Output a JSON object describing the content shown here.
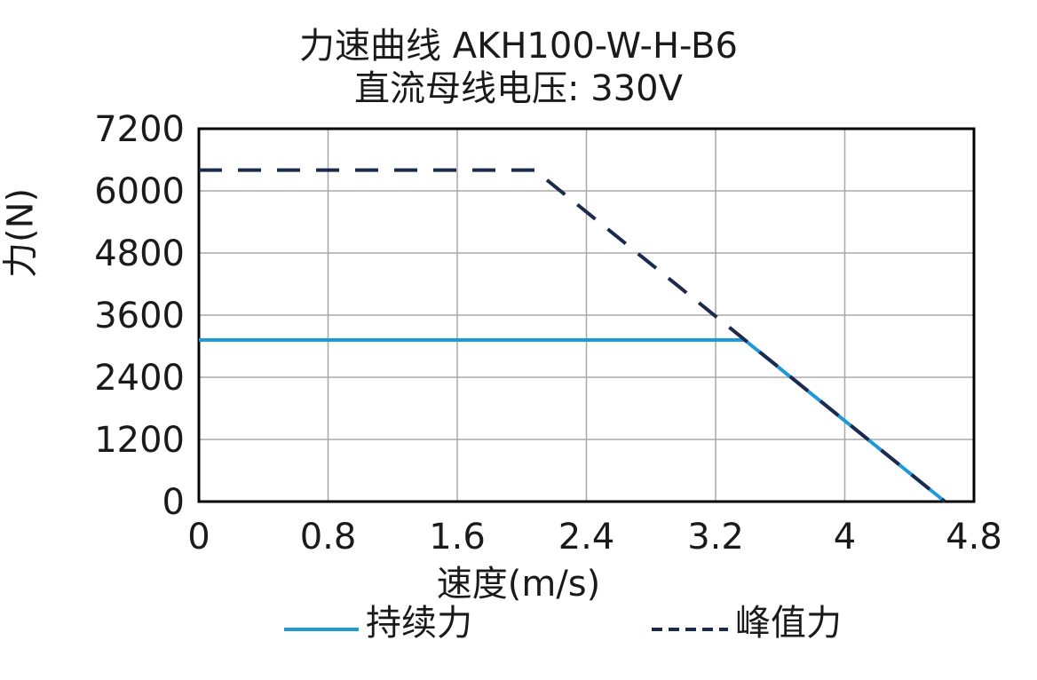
{
  "chart_data": {
    "type": "line",
    "title": "力速曲线 AKH100-W-H-B6",
    "subtitle": "直流母线电压: 330V",
    "xlabel": "速度(m/s)",
    "ylabel": "力(N)",
    "xlim": [
      0,
      4.8
    ],
    "ylim": [
      0,
      7200
    ],
    "x_ticks": [
      "0",
      "0.8",
      "1.6",
      "2.4",
      "3.2",
      "4",
      "4.8"
    ],
    "x_tick_values": [
      0,
      0.8,
      1.6,
      2.4,
      3.2,
      4.0,
      4.8
    ],
    "y_ticks": [
      "0",
      "1200",
      "2400",
      "3600",
      "4800",
      "6000",
      "7200"
    ],
    "y_tick_values": [
      0,
      1200,
      2400,
      3600,
      4800,
      6000,
      7200
    ],
    "grid": true,
    "legend_position": "bottom",
    "series": [
      {
        "name": "持续力",
        "style": "solid",
        "color": "#1f9ad6",
        "points": [
          [
            0,
            3120
          ],
          [
            3.38,
            3120
          ],
          [
            4.62,
            0
          ]
        ]
      },
      {
        "name": "峰值力",
        "style": "dashed",
        "color": "#1b2a4e",
        "points": [
          [
            0,
            6400
          ],
          [
            2.08,
            6400
          ],
          [
            4.62,
            0
          ]
        ]
      }
    ]
  }
}
